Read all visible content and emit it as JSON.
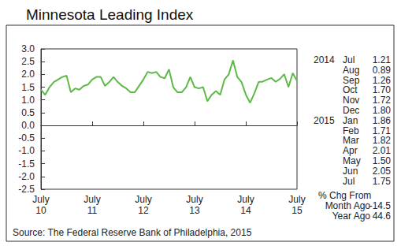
{
  "chart_data": {
    "type": "line",
    "title": "Minnesota Leading Index",
    "categories": [
      "July\n10",
      null,
      null,
      null,
      null,
      null,
      null,
      null,
      null,
      null,
      null,
      null,
      "July\n11",
      null,
      null,
      null,
      null,
      null,
      null,
      null,
      null,
      null,
      null,
      null,
      "July\n12",
      null,
      null,
      null,
      null,
      null,
      null,
      null,
      null,
      null,
      null,
      null,
      "July\n13",
      null,
      null,
      null,
      null,
      null,
      null,
      null,
      null,
      null,
      null,
      null,
      "July\n14",
      null,
      null,
      null,
      null,
      null,
      null,
      null,
      null,
      null,
      null,
      null,
      "July\n15"
    ],
    "values": [
      1.4,
      1.2,
      1.5,
      1.7,
      1.8,
      1.9,
      1.95,
      1.3,
      1.45,
      1.4,
      1.55,
      1.6,
      1.8,
      1.9,
      1.9,
      1.55,
      1.7,
      1.9,
      1.7,
      1.55,
      1.45,
      1.3,
      1.3,
      1.55,
      1.8,
      2.1,
      2.05,
      2.1,
      1.9,
      1.85,
      2.2,
      1.5,
      1.3,
      1.3,
      1.5,
      1.9,
      1.5,
      1.45,
      1.5,
      0.95,
      1.2,
      1.35,
      1.2,
      1.8,
      2.0,
      2.55,
      1.9,
      1.7,
      1.21,
      0.89,
      1.26,
      1.7,
      1.72,
      1.8,
      1.86,
      1.71,
      1.82,
      2.01,
      1.5,
      2.05,
      1.75
    ],
    "color": "#5cb946",
    "ylim": [
      -2.5,
      3
    ],
    "yticks": [
      -2.5,
      {
        "value": -2,
        "label": "-2.0"
      },
      -1.5,
      {
        "value": -1,
        "label": "-1.0"
      },
      -0.5,
      {
        "value": 0,
        "label": "0.0"
      },
      0.5,
      {
        "value": 1,
        "label": "1.0"
      },
      1.5,
      {
        "value": 2,
        "label": "2.0"
      },
      2.5,
      {
        "value": 3,
        "label": "3.0"
      }
    ],
    "grid": false,
    "annotations": {
      "table": [
        [
          "2014",
          "Jul",
          "1.21"
        ],
        [
          "",
          "Aug",
          "0.89"
        ],
        [
          "",
          "Sep",
          "1.26"
        ],
        [
          "",
          "Oct",
          "1.70"
        ],
        [
          "",
          "Nov",
          "1.72"
        ],
        [
          "",
          "Dec",
          "1.80"
        ],
        [
          "2015",
          "Jan",
          "1.86"
        ],
        [
          "",
          "Feb",
          "1.71"
        ],
        [
          "",
          "Mar",
          "1.82"
        ],
        [
          "",
          "Apr",
          "2.01"
        ],
        [
          "",
          "May",
          "1.50"
        ],
        [
          "",
          "Jun",
          "2.05"
        ],
        [
          "",
          "Jul",
          "1.75"
        ]
      ],
      "change_header": "% Chg From",
      "changes": [
        [
          "Month Ago",
          "-14.5"
        ],
        [
          "Year Ago",
          "44.6"
        ]
      ],
      "source": "Source: The Federal Reserve Bank of Philadelphia, 2015"
    }
  }
}
